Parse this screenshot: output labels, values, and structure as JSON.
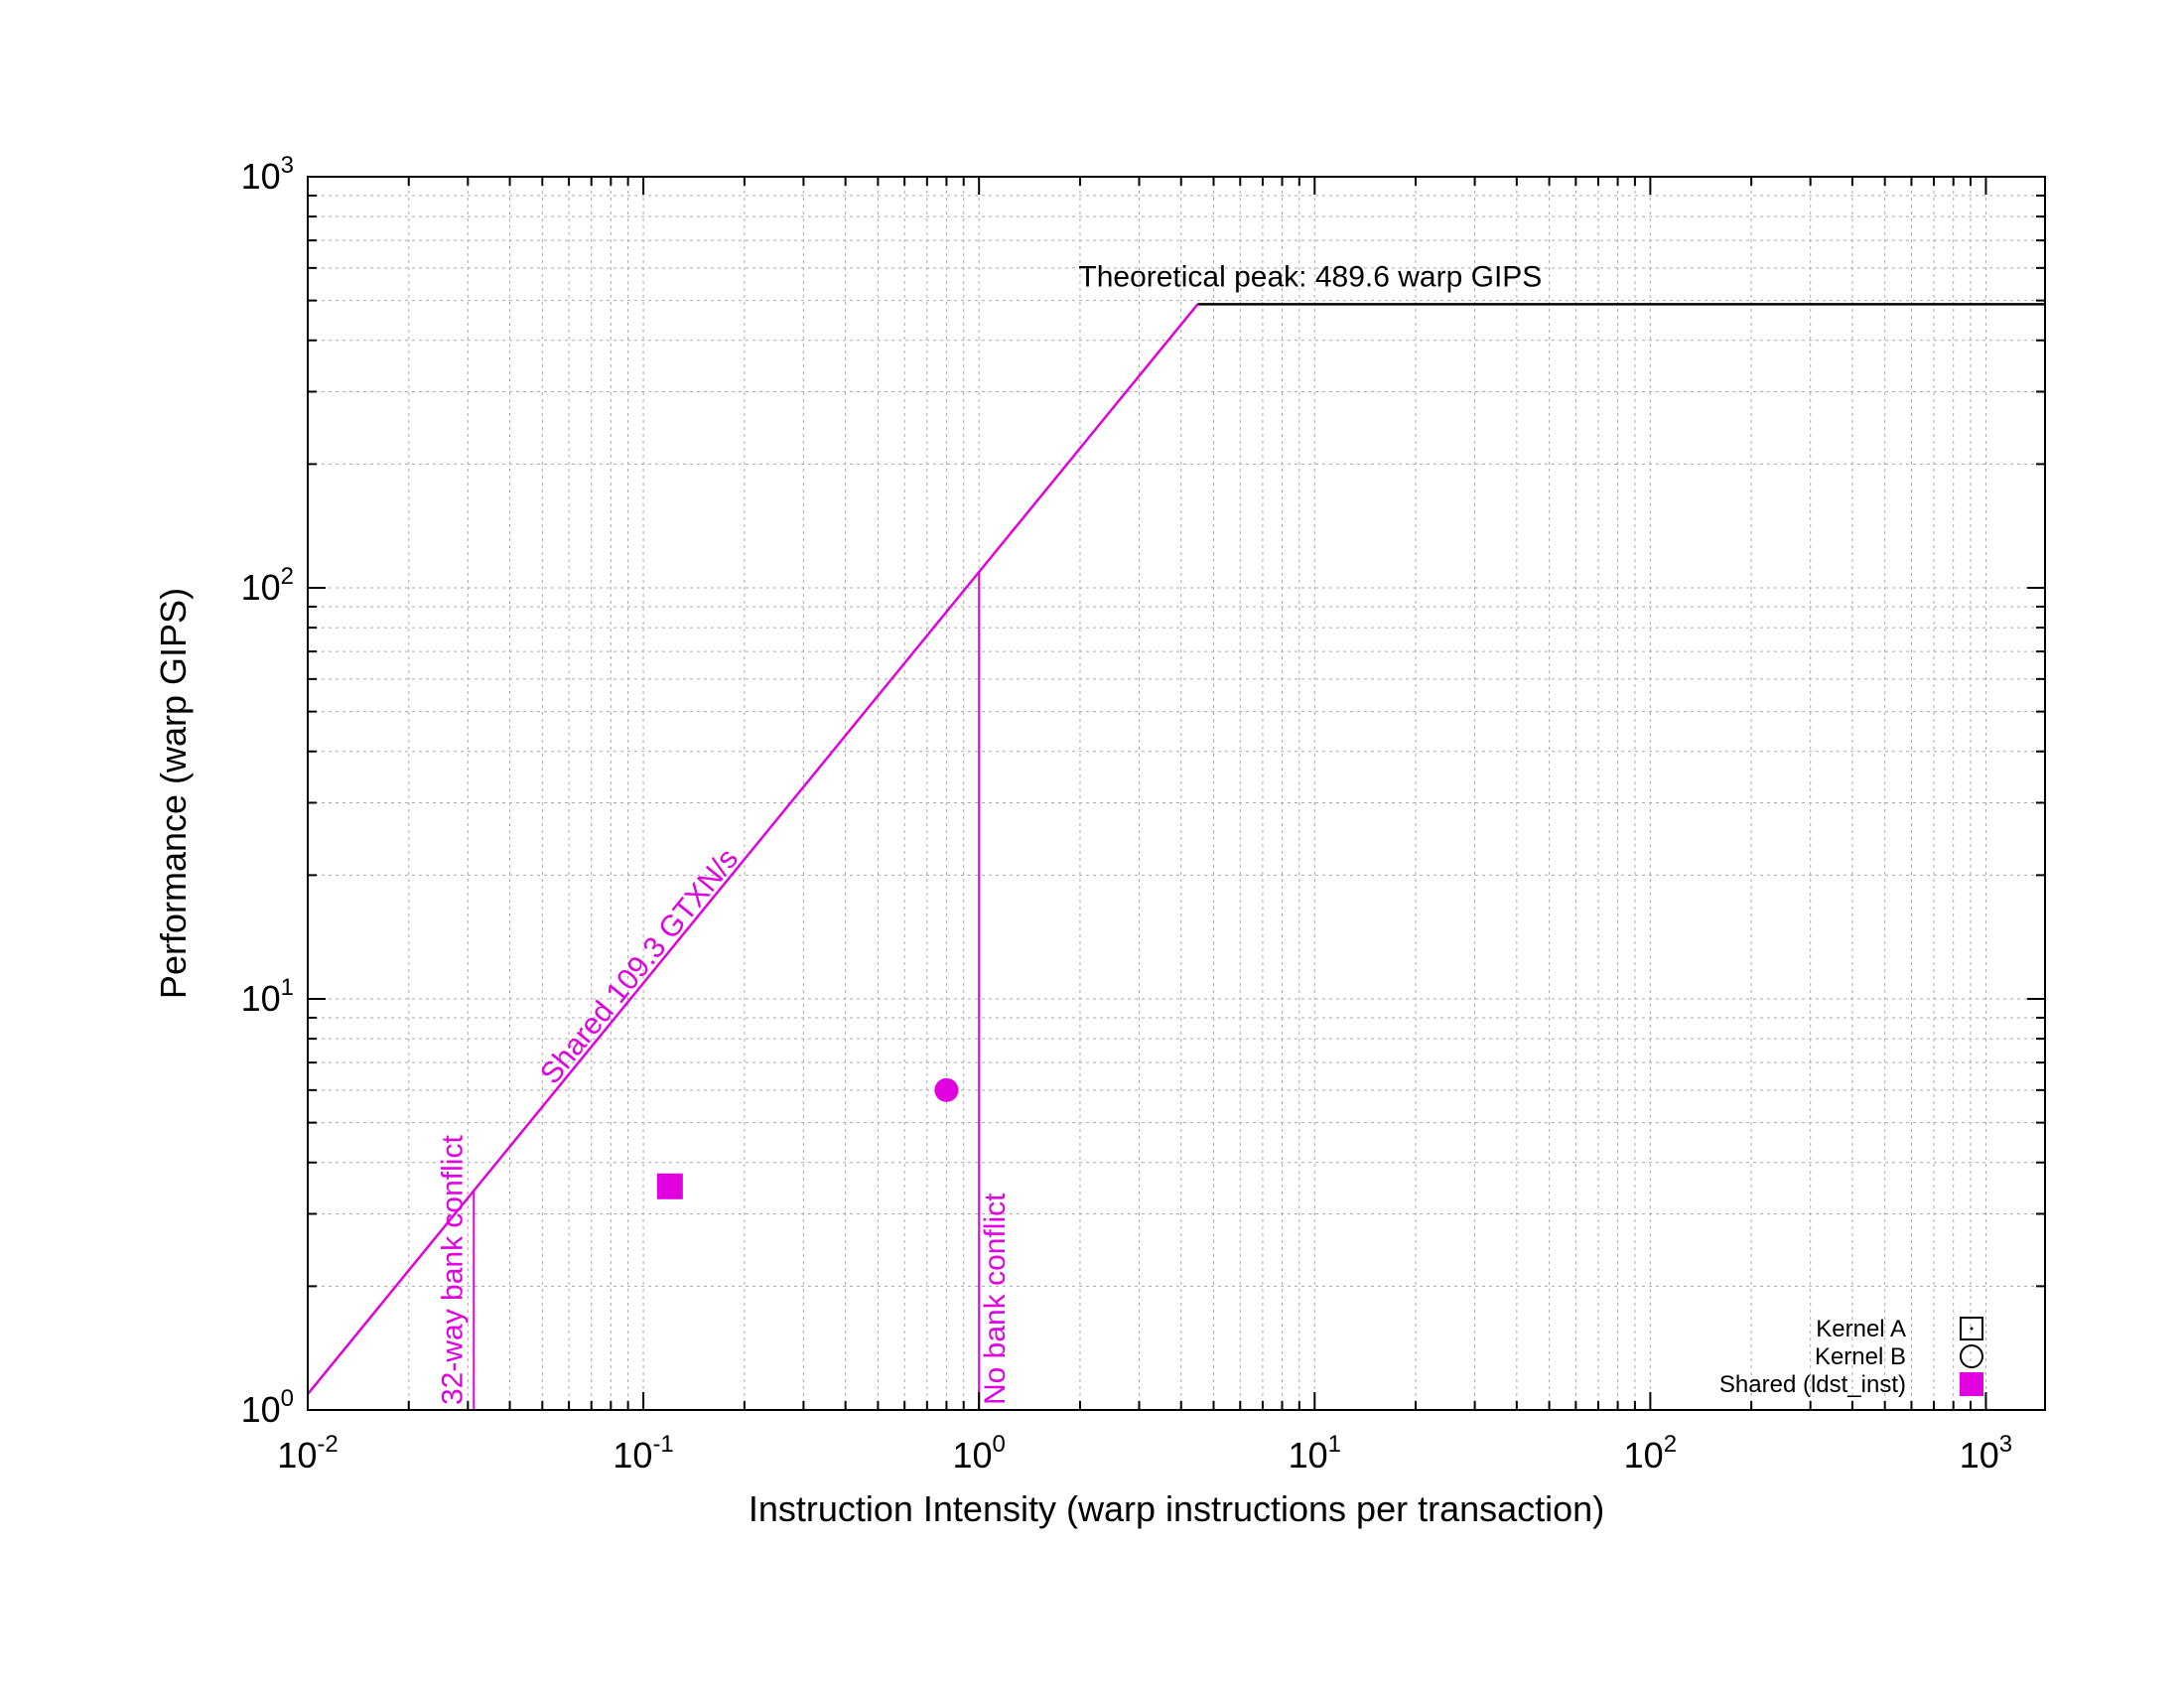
{
  "chart_data": {
    "type": "scatter",
    "title": "",
    "xlabel": "Instruction Intensity (warp instructions per transaction)",
    "ylabel": "Performance (warp GIPS)",
    "x_scale": "log",
    "y_scale": "log",
    "xlim": [
      0.01,
      1500
    ],
    "ylim": [
      1,
      1000
    ],
    "grid": true,
    "legend_position": "bottom-right",
    "x_ticks": [
      {
        "base": "10",
        "exp": "-2",
        "value": 0.01
      },
      {
        "base": "10",
        "exp": "-1",
        "value": 0.1
      },
      {
        "base": "10",
        "exp": "0",
        "value": 1
      },
      {
        "base": "10",
        "exp": "1",
        "value": 10
      },
      {
        "base": "10",
        "exp": "2",
        "value": 100
      },
      {
        "base": "10",
        "exp": "3",
        "value": 1000
      }
    ],
    "y_ticks": [
      {
        "base": "10",
        "exp": "0",
        "value": 1
      },
      {
        "base": "10",
        "exp": "1",
        "value": 10
      },
      {
        "base": "10",
        "exp": "2",
        "value": 100
      },
      {
        "base": "10",
        "exp": "3",
        "value": 1000
      }
    ],
    "rooflines": [
      {
        "label": "Theoretical peak: 489.6 warp GIPS",
        "color": "#000000",
        "points": [
          [
            4.48,
            489.6
          ],
          [
            1500,
            489.6
          ]
        ]
      },
      {
        "label": "Shared 109.3 GTXN/s",
        "color": "#e000e0",
        "points": [
          [
            0.01,
            1.093
          ],
          [
            4.48,
            489.6
          ]
        ]
      }
    ],
    "wall_lines": [
      {
        "label": "32-way bank conflict",
        "x": 0.03125,
        "color": "#e000e0"
      },
      {
        "label": "No bank conflict",
        "x": 1.0,
        "color": "#e000e0"
      }
    ],
    "series": [
      {
        "name": "Kernel A",
        "marker": "open-square",
        "color": "#000000",
        "points": []
      },
      {
        "name": "Kernel B",
        "marker": "open-circle",
        "color": "#000000",
        "points": [
          [
            0.8,
            6.0
          ]
        ]
      },
      {
        "name": "Shared (ldst_inst)",
        "marker": "filled-square",
        "color": "#e000e0",
        "points": [
          [
            0.12,
            3.5
          ]
        ]
      }
    ],
    "colors": {
      "accent": "#e000e0",
      "axis": "#000000",
      "grid": "#aaaaaa"
    }
  }
}
